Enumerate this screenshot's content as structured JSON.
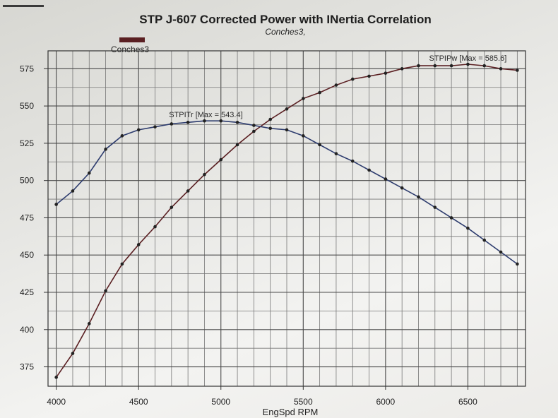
{
  "title": "STP J-607 Corrected Power with INertia Correlation",
  "subtitle": "Conches3,",
  "legend": {
    "label": "Conches3",
    "color": "#5a1f22"
  },
  "chart_data": {
    "type": "line",
    "title": "STP J-607 Corrected Power with INertia Correlation",
    "subtitle": "Conches3,",
    "xlabel": "EngSpd RPM",
    "ylabel": "",
    "xlim": [
      3950,
      6850
    ],
    "ylim": [
      362,
      587
    ],
    "xticks": [
      4000,
      4500,
      5000,
      5500,
      6000,
      6500
    ],
    "yticks": [
      375,
      400,
      425,
      450,
      475,
      500,
      525,
      550,
      575
    ],
    "grid": true,
    "series": [
      {
        "name": "STPIPw",
        "annotation": "STPIPw [Max = 585.6]",
        "color": "#5a1f22",
        "x": [
          4000,
          4100,
          4200,
          4300,
          4400,
          4500,
          4600,
          4700,
          4800,
          4900,
          5000,
          5100,
          5200,
          5300,
          5400,
          5500,
          5600,
          5700,
          5800,
          5900,
          6000,
          6100,
          6200,
          6300,
          6400,
          6500,
          6600,
          6700,
          6800
        ],
        "values": [
          368,
          384,
          404,
          426,
          444,
          457,
          469,
          482,
          493,
          504,
          514,
          524,
          533,
          541,
          548,
          555,
          559,
          564,
          568,
          570,
          572,
          575,
          577,
          577,
          577,
          578,
          577,
          575,
          574
        ]
      },
      {
        "name": "STPITr",
        "annotation": "STPITr [Max = 543.4]",
        "color": "#2d3c6e",
        "x": [
          4000,
          4100,
          4200,
          4300,
          4400,
          4500,
          4600,
          4700,
          4800,
          4900,
          5000,
          5100,
          5200,
          5300,
          5400,
          5500,
          5600,
          5700,
          5800,
          5900,
          6000,
          6100,
          6200,
          6300,
          6400,
          6500,
          6600,
          6700,
          6800
        ],
        "values": [
          484,
          493,
          505,
          521,
          530,
          534,
          536,
          538,
          539,
          540,
          540,
          539,
          537,
          535,
          534,
          530,
          524,
          518,
          513,
          507,
          501,
          495,
          489,
          482,
          475,
          468,
          460,
          452,
          444
        ]
      }
    ]
  }
}
